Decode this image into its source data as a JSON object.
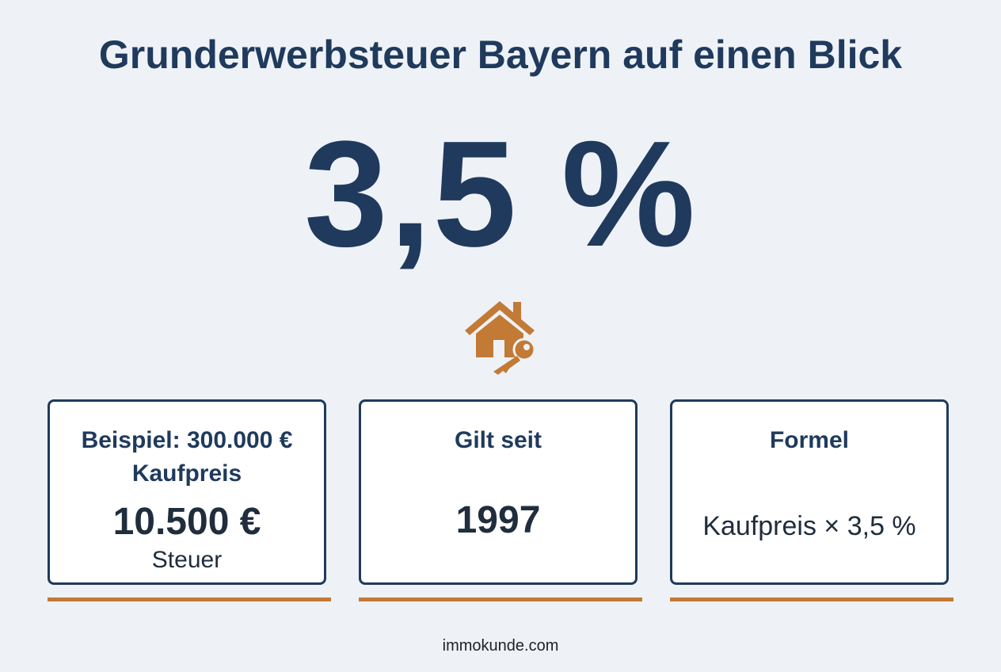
{
  "header": {
    "title": "Grunderwerbsteuer Bayern auf einen Blick",
    "rate": "3,5 %"
  },
  "cards": [
    {
      "title": "Beispiel: 300.000 € Kaufpreis",
      "value": "10.500 €",
      "caption": "Steuer"
    },
    {
      "title": "Gilt seit",
      "value": "1997"
    },
    {
      "title": "Formel",
      "text": "Kaufpreis × 3,5 %"
    }
  ],
  "footer": "immokunde.com"
}
